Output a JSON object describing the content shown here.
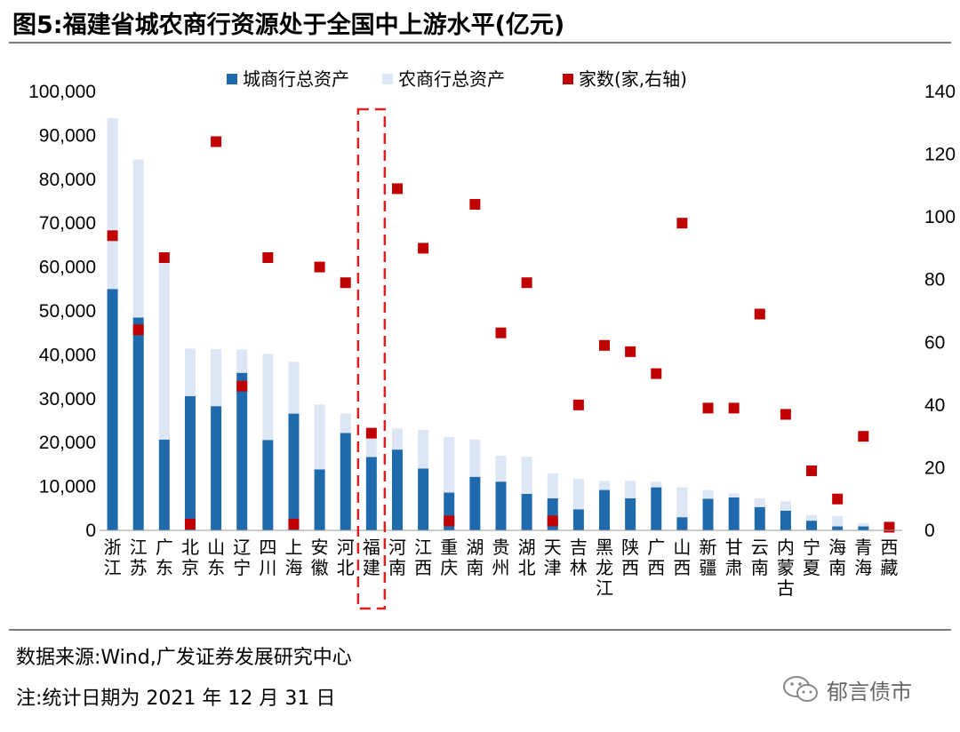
{
  "title": "图5:福建省城农商行资源处于全国中上游水平(亿元)",
  "source": "数据来源:Wind,广发证券发展研究中心",
  "note": "注:统计日期为 2021 年 12 月 31 日",
  "watermark": "郁言债市",
  "chart_data": {
    "type": "bar",
    "stacked": true,
    "categories": [
      "浙江",
      "江苏",
      "广东",
      "北京",
      "山东",
      "辽宁",
      "四川",
      "上海",
      "安徽",
      "河北",
      "福建",
      "河南",
      "江西",
      "重庆",
      "湖南",
      "贵州",
      "湖北",
      "天津",
      "吉林",
      "黑龙江",
      "陕西",
      "广西",
      "山西",
      "新疆",
      "甘肃",
      "云南",
      "内蒙古",
      "宁夏",
      "海南",
      "青海",
      "西藏"
    ],
    "series": [
      {
        "name": "城商行总资产",
        "axis": "left",
        "color": "#1f6aad",
        "values": [
          55000,
          48500,
          20700,
          30600,
          28300,
          35900,
          20600,
          26600,
          13900,
          22200,
          16700,
          18400,
          14100,
          8600,
          12200,
          11100,
          8300,
          7300,
          4800,
          9200,
          7300,
          9800,
          3000,
          7200,
          7500,
          5300,
          4500,
          2200,
          900,
          900,
          0
        ]
      },
      {
        "name": "农商行总资产",
        "axis": "left",
        "color": "#dce6f4",
        "values": [
          38900,
          36000,
          40400,
          10800,
          13000,
          5300,
          19600,
          11800,
          14800,
          4400,
          4300,
          4800,
          8800,
          12700,
          8500,
          5900,
          8500,
          5700,
          6900,
          2100,
          4000,
          1300,
          6800,
          2000,
          900,
          2000,
          2100,
          1300,
          2400,
          700,
          0
        ]
      },
      {
        "name": "家数(家,右轴)",
        "axis": "right",
        "type": "scatter",
        "color": "#c00000",
        "values": [
          94,
          64,
          87,
          2,
          124,
          46,
          87,
          2,
          84,
          79,
          31,
          109,
          90,
          3,
          104,
          63,
          79,
          3,
          40,
          59,
          57,
          50,
          98,
          39,
          39,
          69,
          37,
          19,
          10,
          30,
          1
        ]
      }
    ],
    "left_axis": {
      "min": 0,
      "max": 100000,
      "step": 10000,
      "ticks": [
        "0",
        "10,000",
        "20,000",
        "30,000",
        "40,000",
        "50,000",
        "60,000",
        "70,000",
        "80,000",
        "90,000",
        "100,000"
      ]
    },
    "right_axis": {
      "min": 0,
      "max": 140,
      "step": 20,
      "ticks": [
        "0",
        "20",
        "40",
        "60",
        "80",
        "100",
        "120",
        "140"
      ]
    },
    "highlight": "福建",
    "legend": [
      "城商行总资产",
      "农商行总资产",
      "家数(家,右轴)"
    ]
  }
}
